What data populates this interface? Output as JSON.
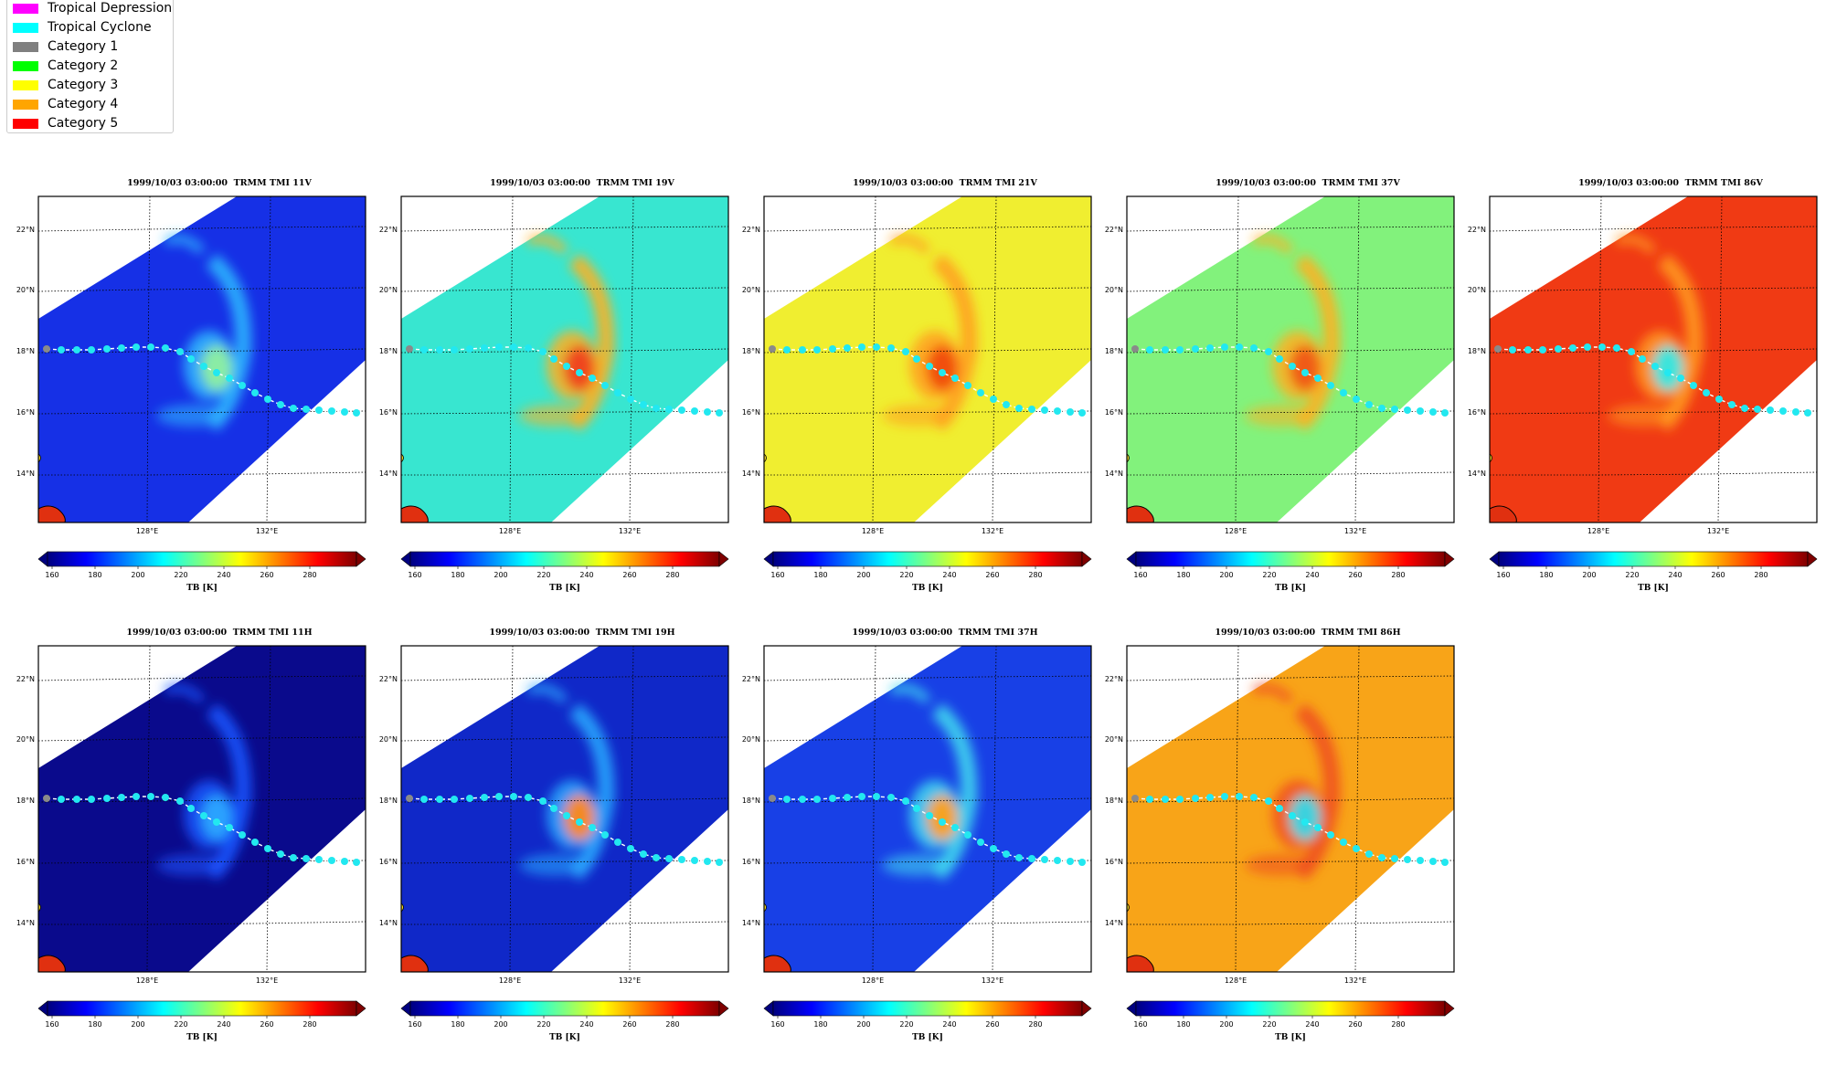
{
  "legend": {
    "items": [
      {
        "label": "Tropical Depression",
        "color": "#ff00ff"
      },
      {
        "label": "Tropical Cyclone",
        "color": "#00ffff"
      },
      {
        "label": "Category 1",
        "color": "#808080"
      },
      {
        "label": "Category 2",
        "color": "#00ff00"
      },
      {
        "label": "Category 3",
        "color": "#ffff00"
      },
      {
        "label": "Category 4",
        "color": "#ffa500"
      },
      {
        "label": "Category 5",
        "color": "#ff0000"
      }
    ]
  },
  "map": {
    "lat_labels": [
      "22°N",
      "20°N",
      "18°N",
      "16°N",
      "14°N"
    ],
    "lon_labels": [
      "128°E",
      "132°E"
    ],
    "colorbar_ticks": [
      "160",
      "180",
      "200",
      "220",
      "240",
      "260",
      "280"
    ],
    "colorbar_label": "TB [K]",
    "colormap": "jet"
  },
  "panels": [
    {
      "title": "1999/10/03 03:00:00  TRMM TMI 11V",
      "bg_color": "#1630e6",
      "storm_color": "#2fb8ff",
      "core_color": "#8ff0a0"
    },
    {
      "title": "1999/10/03 03:00:00  TRMM TMI 19V",
      "bg_color": "#38e6d0",
      "storm_color": "#ffb020",
      "core_color": "#f0401a"
    },
    {
      "title": "1999/10/03 03:00:00  TRMM TMI 21V",
      "bg_color": "#f0ee30",
      "storm_color": "#ffa020",
      "core_color": "#f04a10"
    },
    {
      "title": "1999/10/03 03:00:00  TRMM TMI 37V",
      "bg_color": "#82f27c",
      "storm_color": "#ffb020",
      "core_color": "#f05518"
    },
    {
      "title": "1999/10/03 03:00:00  TRMM TMI 86V",
      "bg_color": "#f03a14",
      "storm_color": "#ff9a20",
      "core_color": "#30e8e6"
    },
    {
      "title": "1999/10/03 03:00:00  TRMM TMI 11H",
      "bg_color": "#0a0a8c",
      "storm_color": "#1a55ff",
      "core_color": "#2aa8ff"
    },
    {
      "title": "1999/10/03 03:00:00  TRMM TMI 19H",
      "bg_color": "#1028c8",
      "storm_color": "#2aa8ff",
      "core_color": "#ff8a18"
    },
    {
      "title": "1999/10/03 03:00:00  TRMM TMI 37H",
      "bg_color": "#1840e6",
      "storm_color": "#40d8f0",
      "core_color": "#ffa018"
    },
    {
      "title": "1999/10/03 03:00:00  TRMM TMI 86H",
      "bg_color": "#f8a418",
      "storm_color": "#f05020",
      "core_color": "#30d8e8"
    }
  ]
}
